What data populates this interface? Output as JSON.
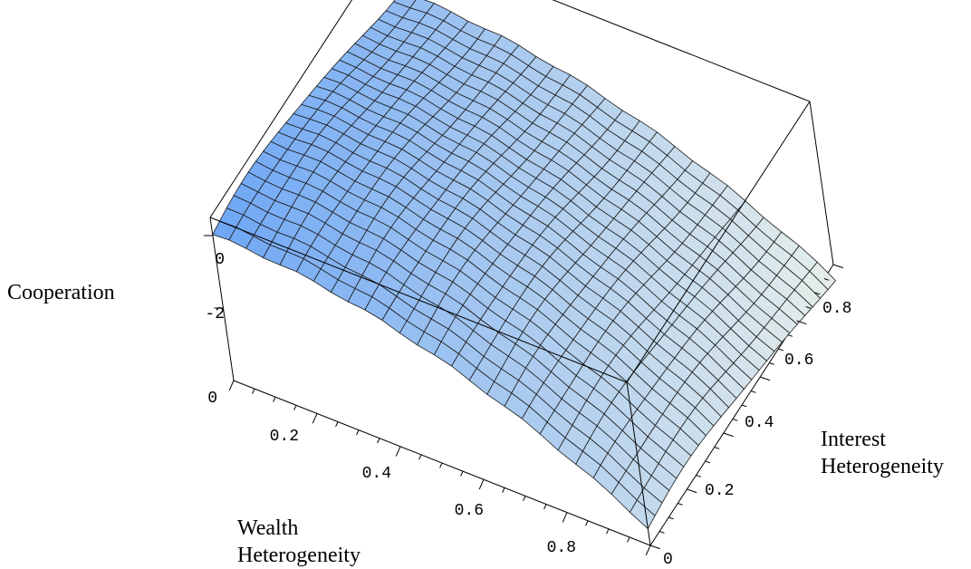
{
  "chart_data": {
    "type": "surface",
    "title": "",
    "xlabel": [
      "Wealth",
      "Heterogeneity"
    ],
    "ylabel": [
      "Interest",
      "Heterogeneity"
    ],
    "zlabel": "Cooperation",
    "x_ticks": [
      "0",
      "0.2",
      "0.4",
      "0.6",
      "0.8"
    ],
    "y_ticks": [
      "0",
      "0.2",
      "0.4",
      "0.6",
      "0.8"
    ],
    "z_ticks": [
      "0",
      "-2"
    ],
    "xlim": [
      0,
      1
    ],
    "ylim": [
      0,
      1
    ],
    "zlim": [
      -4,
      0.5
    ],
    "grid_resolution": 25,
    "description": "Smooth surface, Cooperation decreases with wealth heterogeneity (about 0 at 0 to about -3.8 at 1) and peaks near interest heterogeneity 0.3",
    "sample_points": [
      {
        "x": 0,
        "y": 0,
        "z": -0.2
      },
      {
        "x": 0,
        "y": 0.3,
        "z": 0.3
      },
      {
        "x": 0,
        "y": 1,
        "z": -0.9
      },
      {
        "x": 0.5,
        "y": 0.3,
        "z": -0.8
      },
      {
        "x": 1,
        "y": 0,
        "z": -3.6
      },
      {
        "x": 1,
        "y": 0.3,
        "z": -3.2
      },
      {
        "x": 1,
        "y": 1,
        "z": -3.8
      }
    ]
  },
  "colors": {
    "surface_near": "#6da6f5",
    "surface_far": "#e6eeea",
    "mesh": "#1a1a1a"
  }
}
